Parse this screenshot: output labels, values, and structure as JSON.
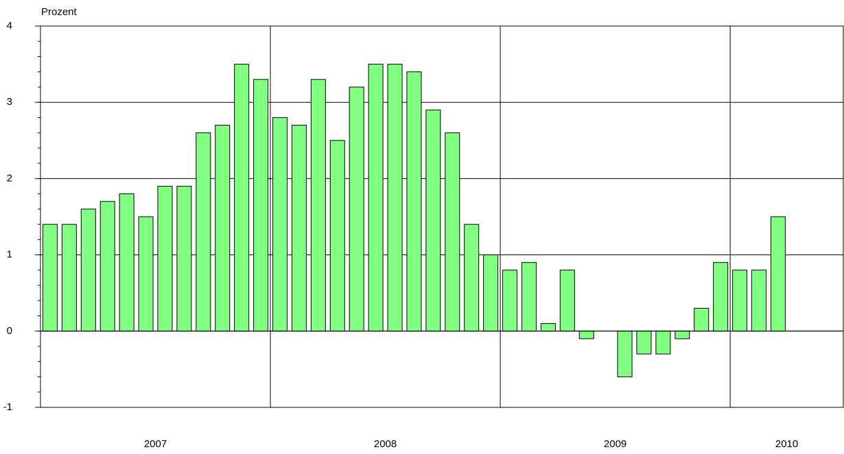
{
  "chart_data": {
    "type": "bar",
    "y_label": "Prozent",
    "categories": [
      null,
      null,
      null,
      null,
      null,
      null,
      null,
      null,
      null,
      null,
      null,
      null,
      null,
      null,
      null,
      null,
      null,
      null,
      null,
      null,
      null,
      null,
      null,
      null,
      null,
      null,
      null,
      null,
      null,
      null,
      null,
      null,
      null,
      null,
      null,
      null,
      null,
      null,
      null
    ],
    "values": [
      1.4,
      1.4,
      1.6,
      1.7,
      1.8,
      1.5,
      1.9,
      1.9,
      2.6,
      2.7,
      3.5,
      3.3,
      2.8,
      2.7,
      3.3,
      2.5,
      3.2,
      3.5,
      3.5,
      3.4,
      2.9,
      2.6,
      1.4,
      1.0,
      0.8,
      0.9,
      0.1,
      0.8,
      -0.1,
      0,
      -0.6,
      -0.3,
      -0.3,
      -0.1,
      0.3,
      0.9,
      0.8,
      0.8,
      1.5
    ],
    "years": [
      "2007",
      "2008",
      "2009",
      "2010"
    ],
    "color": "#80ff80",
    "ylim": [
      -1,
      4
    ],
    "yticks": [
      -1,
      0,
      1,
      2,
      3,
      4
    ],
    "grid": true
  }
}
